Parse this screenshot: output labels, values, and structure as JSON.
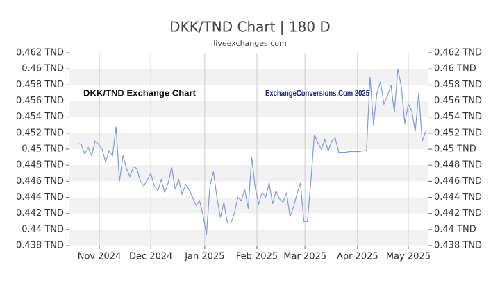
{
  "chart_data": {
    "type": "line",
    "title": "DKK/TND Chart | 180 D",
    "subtitle": "liveexchanges.com",
    "annotations": [
      "DKK/TND Exchange Chart",
      "ExchangeConversions.Com 2025"
    ],
    "xlim": [
      0,
      100
    ],
    "xticks": [
      {
        "value": 6.2,
        "label": "Nov 2024"
      },
      {
        "value": 21,
        "label": "Dec 2024"
      },
      {
        "value": 36.5,
        "label": "Jan 2025"
      },
      {
        "value": 51.5,
        "label": "Feb 2025"
      },
      {
        "value": 65.3,
        "label": "Mar 2025"
      },
      {
        "value": 80.4,
        "label": "Apr 2025"
      },
      {
        "value": 95,
        "label": "May 2025"
      }
    ],
    "ylim": [
      0.438,
      0.462
    ],
    "yticks": [
      {
        "value": 0.438,
        "label": "0.438 TND"
      },
      {
        "value": 0.44,
        "label": "0.44 TND"
      },
      {
        "value": 0.442,
        "label": "0.442 TND"
      },
      {
        "value": 0.444,
        "label": "0.444 TND"
      },
      {
        "value": 0.446,
        "label": "0.446 TND"
      },
      {
        "value": 0.448,
        "label": "0.448 TND"
      },
      {
        "value": 0.45,
        "label": "0.45 TND"
      },
      {
        "value": 0.452,
        "label": "0.452 TND"
      },
      {
        "value": 0.454,
        "label": "0.454 TND"
      },
      {
        "value": 0.456,
        "label": "0.456 TND"
      },
      {
        "value": 0.458,
        "label": "0.458 TND"
      },
      {
        "value": 0.46,
        "label": "0.46 TND"
      },
      {
        "value": 0.462,
        "label": "0.462 TND"
      }
    ],
    "grid": true,
    "series": [
      {
        "color": "#7b9bdc",
        "values": [
          0.4507,
          0.4506,
          0.4494,
          0.4502,
          0.4492,
          0.451,
          0.4506,
          0.45,
          0.4484,
          0.4498,
          0.4492,
          0.4528,
          0.446,
          0.4492,
          0.4476,
          0.4466,
          0.4478,
          0.4476,
          0.446,
          0.4454,
          0.4462,
          0.447,
          0.4454,
          0.4448,
          0.4462,
          0.4446,
          0.4458,
          0.4478,
          0.445,
          0.4462,
          0.4444,
          0.4456,
          0.445,
          0.444,
          0.443,
          0.4436,
          0.4418,
          0.4394,
          0.4455,
          0.4472,
          0.444,
          0.4415,
          0.4434,
          0.4408,
          0.4408,
          0.442,
          0.444,
          0.4436,
          0.445,
          0.4426,
          0.449,
          0.4452,
          0.4432,
          0.4446,
          0.444,
          0.4458,
          0.4432,
          0.4448,
          0.4438,
          0.4434,
          0.4446,
          0.4416,
          0.4428,
          0.4444,
          0.4458,
          0.441,
          0.441,
          0.446,
          0.4518,
          0.4508,
          0.45,
          0.4512,
          0.4498,
          0.451,
          0.4514,
          0.4496,
          0.4496,
          0.4496,
          0.4497,
          0.4497,
          0.4497,
          0.4497,
          0.4498,
          0.4498,
          0.459,
          0.453,
          0.457,
          0.4584,
          0.4556,
          0.4566,
          0.458,
          0.4546,
          0.46,
          0.4578,
          0.4532,
          0.4556,
          0.4548,
          0.4522,
          0.457,
          0.451,
          0.4522
        ]
      }
    ]
  }
}
